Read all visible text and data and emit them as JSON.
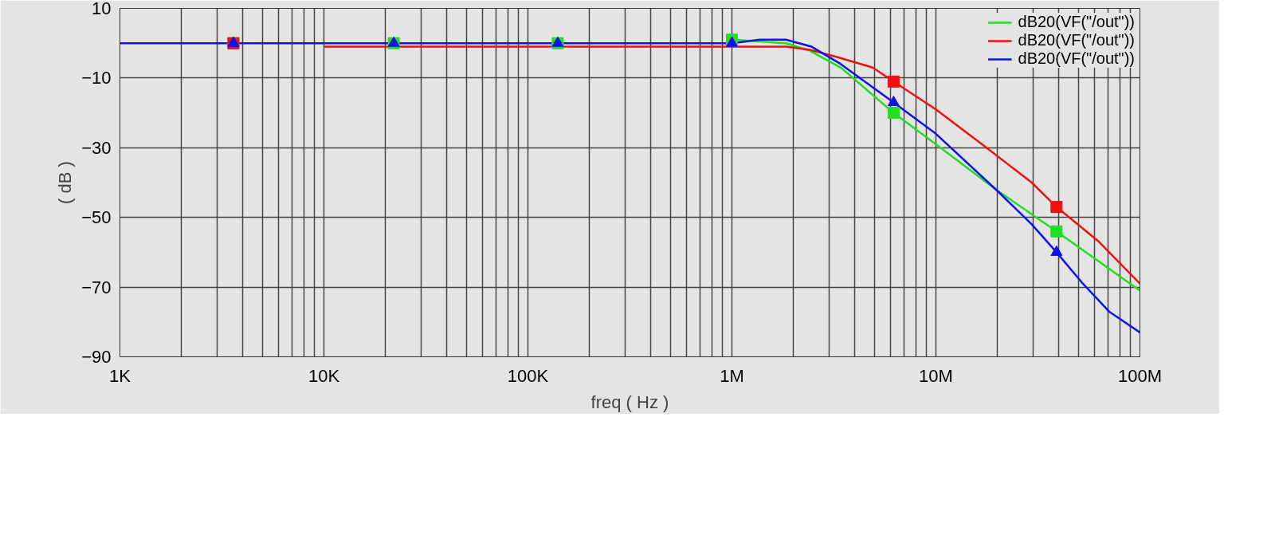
{
  "chart_data": {
    "type": "line",
    "xlabel": "freq ( Hz )",
    "ylabel": "( dB )",
    "log": "x",
    "xlim": [
      1000,
      100000000
    ],
    "xticks": [
      {
        "value": 1000,
        "label": "1K"
      },
      {
        "value": 10000,
        "label": "10K"
      },
      {
        "value": 100000,
        "label": "100K"
      },
      {
        "value": 1000000,
        "label": "1M"
      },
      {
        "value": 10000000,
        "label": "10M"
      },
      {
        "value": 100000000,
        "label": "100M"
      }
    ],
    "ylim": [
      -90,
      10
    ],
    "yticks": [
      10,
      -10,
      -30,
      -50,
      -70,
      -90
    ],
    "grid": true,
    "legend": "top right",
    "line_style": "solid",
    "series": [
      {
        "name": "dB20(VF(\"/out\"))",
        "color": "#22dd22",
        "x": [
          1000000,
          1840000,
          2380000,
          3420000,
          6200000,
          10000000,
          19700000,
          39000000,
          100000000
        ],
        "values": [
          1,
          0,
          -2,
          -7,
          -20,
          -29,
          -42,
          -54,
          -71
        ]
      },
      {
        "name": "dB20(VF(\"/out\"))",
        "color": "#ee1111",
        "x": [
          10000,
          1000000,
          1840000,
          2460000,
          3300000,
          4900000,
          6200000,
          10000000,
          17700000,
          29500000,
          39000000,
          63000000,
          100000000
        ],
        "values": [
          -1,
          -1,
          -1,
          -2,
          -4,
          -7,
          -11,
          -19,
          -30,
          -40,
          -47,
          -57,
          -69
        ]
      },
      {
        "name": "dB20(VF(\"/out\"))",
        "color": "#1111ee",
        "x": [
          1000,
          1000000,
          1370000,
          1840000,
          2460000,
          3420000,
          6200000,
          10000000,
          19700000,
          29500000,
          39000000,
          52500000,
          70600000,
          100000000
        ],
        "values": [
          0,
          0,
          1,
          1,
          -1,
          -6,
          -17,
          -26,
          -42,
          -52,
          -60,
          -69,
          -77,
          -83
        ]
      },
      {
        "type": "scatter",
        "marker": "square",
        "color": "#22dd22",
        "x": [
          3600,
          22000,
          140000,
          1000000,
          6200000,
          39000000
        ],
        "values": [
          0,
          0,
          0,
          1,
          -20,
          -54
        ]
      },
      {
        "type": "scatter",
        "marker": "square",
        "color": "#ee1111",
        "x": [
          3600,
          6200000,
          39000000
        ],
        "values": [
          0,
          -11,
          -47
        ]
      },
      {
        "type": "scatter",
        "marker": "triangle",
        "color": "#1111ee",
        "x": [
          3600,
          22000,
          140000,
          1000000,
          6200000,
          39000000
        ],
        "values": [
          0,
          0,
          0,
          0,
          -17,
          -60
        ]
      }
    ]
  }
}
